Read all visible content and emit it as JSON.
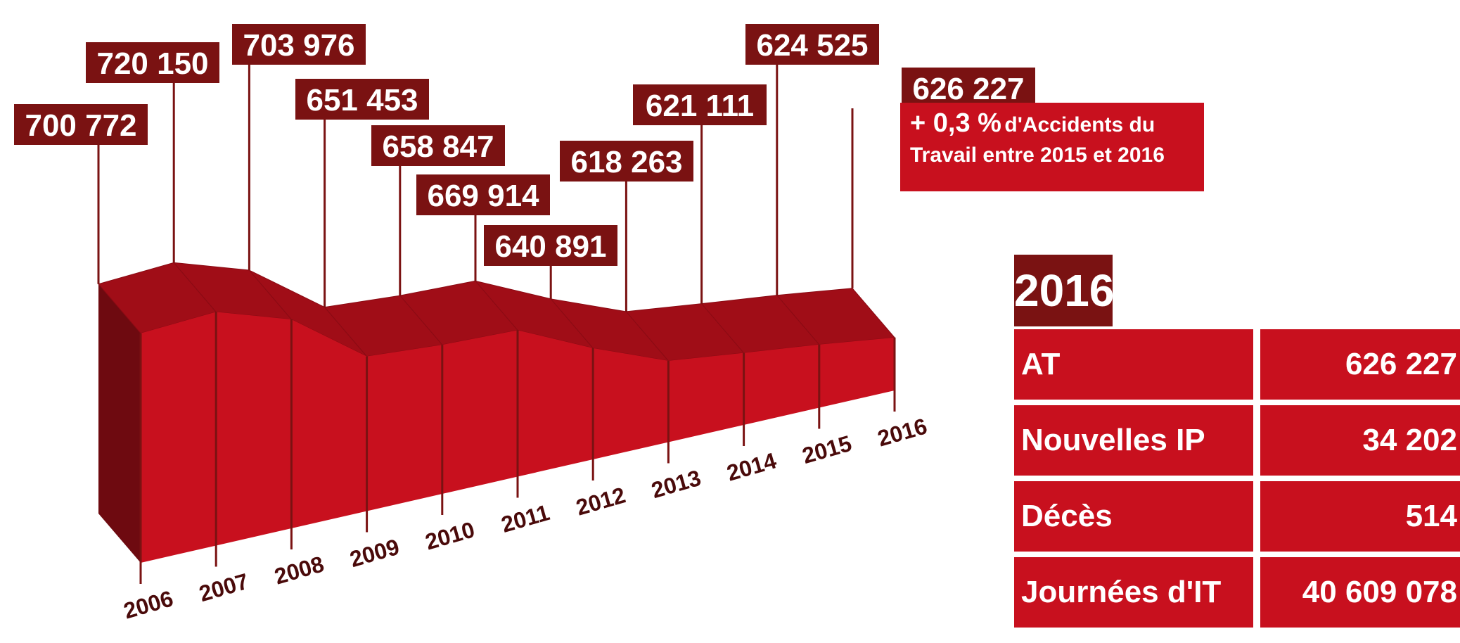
{
  "chart_data": {
    "type": "area",
    "categories": [
      "2006",
      "2007",
      "2008",
      "2009",
      "2010",
      "2011",
      "2012",
      "2013",
      "2014",
      "2015",
      "2016"
    ],
    "values": [
      700772,
      720150,
      703976,
      651453,
      658847,
      669914,
      640891,
      618263,
      621111,
      624525,
      626227
    ],
    "value_labels": [
      "700 772",
      "720 150",
      "703 976",
      "651 453",
      "658 847",
      "669 914",
      "640 891",
      "618 263",
      "621 111",
      "624 525",
      "626 227"
    ],
    "title": "",
    "xlabel": "",
    "ylabel": "",
    "grid": false,
    "legend": "none",
    "colors": {
      "front": "#c8101e",
      "top": "#a00d17",
      "side": "#6e0a10",
      "label_bg": "#7a1212",
      "stem": "#7a1212"
    }
  },
  "note": {
    "pct": "+ 0,3 %",
    "text1": "d'Accidents du",
    "text2": "Travail entre 2015 et 2016"
  },
  "panel": {
    "year": "2016",
    "rows": [
      {
        "label": "AT",
        "value": "626 227"
      },
      {
        "label": "Nouvelles IP",
        "value": "34 202"
      },
      {
        "label": "Décès",
        "value": "514"
      },
      {
        "label": "Journées d'IT",
        "value": "40 609 078"
      }
    ]
  }
}
